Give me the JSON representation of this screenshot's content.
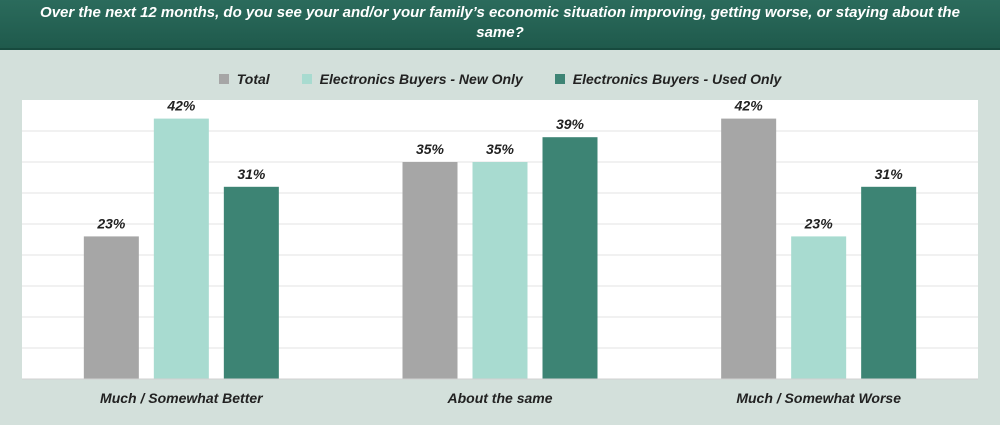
{
  "chart_data": {
    "type": "bar",
    "title": "Over the next 12 months, do you see your and/or your family’s economic situation improving, getting worse, or staying about the same?",
    "categories": [
      "Much / Somewhat Better",
      "About the same",
      "Much / Somewhat Worse"
    ],
    "series": [
      {
        "name": "Total",
        "values": [
          23,
          35,
          42
        ],
        "labels": [
          "23%",
          "35%",
          "42%"
        ],
        "color": "#a6a6a6"
      },
      {
        "name": "Electronics Buyers - New Only",
        "values": [
          42,
          35,
          23
        ],
        "labels": [
          "42%",
          "35%",
          "23%"
        ],
        "color": "#a8dbd0"
      },
      {
        "name": "Electronics Buyers - Used Only",
        "values": [
          31,
          39,
          31
        ],
        "labels": [
          "31%",
          "39%",
          "31%"
        ],
        "color": "#3d8474"
      }
    ],
    "ylim": [
      0,
      45
    ],
    "grid": true,
    "legend": "top"
  },
  "colors": {
    "header_bg": "#1f5a4c",
    "page_bg": "#d3e0db",
    "plot_bg": "#ffffff"
  }
}
